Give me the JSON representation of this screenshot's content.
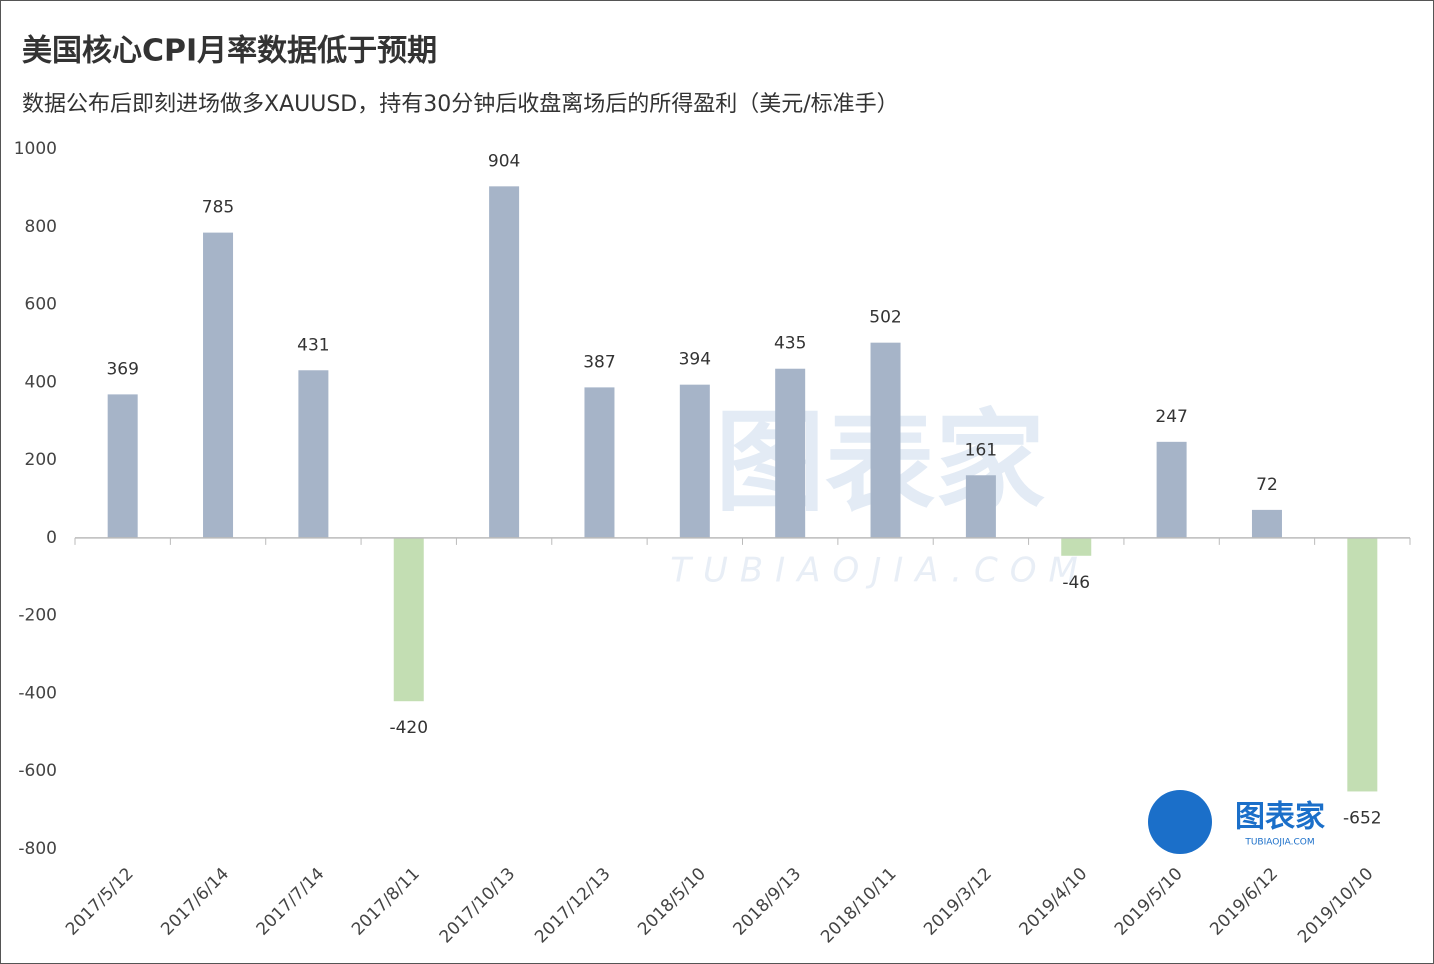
{
  "chart_data": {
    "type": "bar",
    "title": "美国核心CPI月率数据低于预期",
    "subtitle": "数据公布后即刻进场做多XAUUSD，持有30分钟后收盘离场后的所得盈利（美元/标准手）",
    "categories": [
      "2017/5/12",
      "2017/6/14",
      "2017/7/14",
      "2017/8/11",
      "2017/10/13",
      "2017/12/13",
      "2018/5/10",
      "2018/9/13",
      "2018/10/11",
      "2019/3/12",
      "2019/4/10",
      "2019/5/10",
      "2019/6/12",
      "2019/10/10"
    ],
    "values": [
      369,
      785,
      431,
      -420,
      904,
      387,
      394,
      435,
      502,
      161,
      -46,
      247,
      72,
      -652
    ],
    "color": "#a6b4c8",
    "negative_color": "#c3deb3",
    "ylim": [
      -800,
      1000
    ],
    "yticks": [
      -800,
      -600,
      -400,
      -200,
      0,
      200,
      400,
      600,
      800,
      1000
    ],
    "grid": false,
    "watermark": "图表家",
    "watermark_site": "TUBIAOJIA.COM"
  }
}
